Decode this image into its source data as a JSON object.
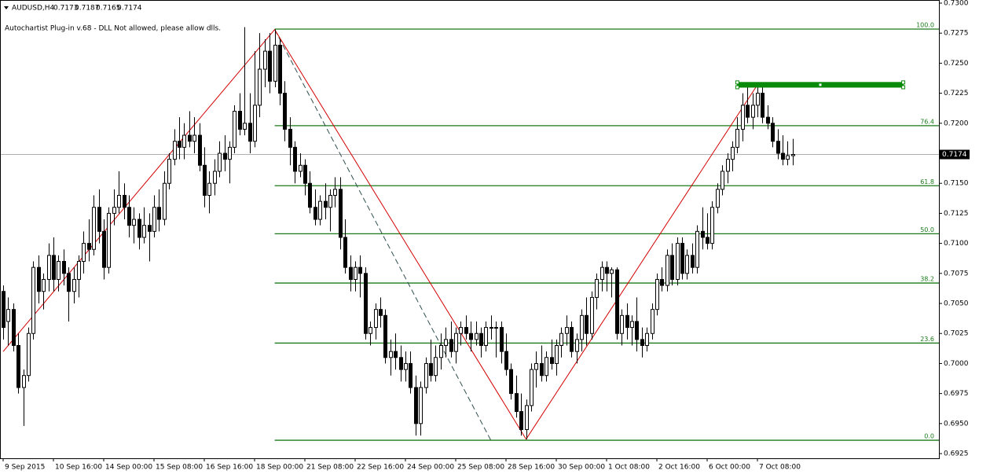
{
  "chart_data": {
    "type": "candlestick",
    "title": "AUDUSD,H4",
    "header_values": [
      0.7173,
      0.7187,
      0.7165,
      0.7174
    ],
    "plugin_message": "Autochartist Plug-in v.68 - DLL Not allowed, please allow dlls.",
    "bull_color": "#ffffff",
    "bear_color": "#000000",
    "grid": false,
    "ylim": [
      0.69211,
      0.73026
    ],
    "yticks": [
      0.6925,
      {
        "value": 0.695,
        "label": "0.6950"
      },
      0.6975,
      {
        "value": 0.7,
        "label": "0.7000"
      },
      0.7025,
      {
        "value": 0.705,
        "label": "0.7050"
      },
      0.7075,
      {
        "value": 0.71,
        "label": "0.7100"
      },
      0.7125,
      {
        "value": 0.715,
        "label": "0.7150"
      },
      0.7175,
      {
        "value": 0.72,
        "label": "0.7200"
      },
      0.7225,
      {
        "value": 0.725,
        "label": "0.7250"
      },
      0.7275,
      {
        "value": 0.73,
        "label": "0.7300"
      }
    ],
    "categories": [
      "9 Sep 2015",
      null,
      null,
      null,
      null,
      null,
      null,
      null,
      null,
      null,
      "10 Sep 16:00",
      null,
      null,
      null,
      null,
      null,
      null,
      null,
      null,
      null,
      "14 Sep 00:00",
      null,
      null,
      null,
      null,
      null,
      null,
      null,
      null,
      null,
      "15 Sep 08:00",
      null,
      null,
      null,
      null,
      null,
      null,
      null,
      null,
      null,
      "16 Sep 16:00",
      null,
      null,
      null,
      null,
      null,
      null,
      null,
      null,
      null,
      "18 Sep 00:00",
      null,
      null,
      null,
      null,
      null,
      null,
      null,
      null,
      null,
      "21 Sep 08:00",
      null,
      null,
      null,
      null,
      null,
      null,
      null,
      null,
      null,
      "22 Sep 16:00",
      null,
      null,
      null,
      null,
      null,
      null,
      null,
      null,
      null,
      "24 Sep 00:00",
      null,
      null,
      null,
      null,
      null,
      null,
      null,
      null,
      null,
      "25 Sep 08:00",
      null,
      null,
      null,
      null,
      null,
      null,
      null,
      null,
      null,
      "28 Sep 16:00",
      null,
      null,
      null,
      null,
      null,
      null,
      null,
      null,
      null,
      "30 Sep 00:00",
      null,
      null,
      null,
      null,
      null,
      null,
      null,
      null,
      null,
      "1 Oct 08:00",
      null,
      null,
      null,
      null,
      null,
      null,
      null,
      null,
      null,
      "2 Oct 16:00",
      null,
      null,
      null,
      null,
      null,
      null,
      null,
      null,
      null,
      "6 Oct 00:00",
      null,
      null,
      null,
      null,
      null,
      null,
      null,
      null,
      null,
      "7 Oct 08:00",
      null,
      null,
      null,
      null,
      null,
      null,
      null
    ],
    "candles": [
      [
        0.706,
        0.7065,
        0.702,
        0.703
      ],
      [
        0.7035,
        0.7055,
        0.7015,
        0.7045
      ],
      [
        0.7045,
        0.705,
        0.701,
        0.7015
      ],
      [
        0.7015,
        0.7025,
        0.6975,
        0.698
      ],
      [
        0.698,
        0.6995,
        0.6948,
        0.699
      ],
      [
        0.699,
        0.703,
        0.6985,
        0.7025
      ],
      [
        0.7025,
        0.7085,
        0.702,
        0.708
      ],
      [
        0.708,
        0.709,
        0.705,
        0.706
      ],
      [
        0.706,
        0.7075,
        0.7045,
        0.707
      ],
      [
        0.707,
        0.71,
        0.706,
        0.709
      ],
      [
        0.709,
        0.7105,
        0.706,
        0.707
      ],
      [
        0.707,
        0.709,
        0.706,
        0.7085
      ],
      [
        0.7085,
        0.7095,
        0.7065,
        0.7075
      ],
      [
        0.7075,
        0.708,
        0.7035,
        0.706
      ],
      [
        0.706,
        0.708,
        0.705,
        0.707
      ],
      [
        0.707,
        0.709,
        0.7055,
        0.7085
      ],
      [
        0.7085,
        0.711,
        0.7075,
        0.71
      ],
      [
        0.71,
        0.712,
        0.7085,
        0.7095
      ],
      [
        0.7095,
        0.714,
        0.709,
        0.713
      ],
      [
        0.713,
        0.7145,
        0.71,
        0.711
      ],
      [
        0.711,
        0.712,
        0.707,
        0.708
      ],
      [
        0.708,
        0.713,
        0.7075,
        0.7125
      ],
      [
        0.7125,
        0.7145,
        0.7115,
        0.713
      ],
      [
        0.713,
        0.716,
        0.7125,
        0.714
      ],
      [
        0.714,
        0.715,
        0.712,
        0.713
      ],
      [
        0.713,
        0.714,
        0.7105,
        0.7115
      ],
      [
        0.7115,
        0.713,
        0.71,
        0.712
      ],
      [
        0.712,
        0.7125,
        0.7095,
        0.7105
      ],
      [
        0.7105,
        0.713,
        0.71,
        0.7115
      ],
      [
        0.7115,
        0.7125,
        0.7085,
        0.711
      ],
      [
        0.711,
        0.714,
        0.7105,
        0.713
      ],
      [
        0.713,
        0.7145,
        0.711,
        0.712
      ],
      [
        0.712,
        0.716,
        0.7115,
        0.715
      ],
      [
        0.715,
        0.7175,
        0.7145,
        0.717
      ],
      [
        0.717,
        0.7195,
        0.7165,
        0.7185
      ],
      [
        0.7185,
        0.7205,
        0.717,
        0.718
      ],
      [
        0.718,
        0.72,
        0.717,
        0.719
      ],
      [
        0.719,
        0.721,
        0.718,
        0.7185
      ],
      [
        0.7185,
        0.7205,
        0.7175,
        0.719
      ],
      [
        0.719,
        0.72,
        0.716,
        0.7165
      ],
      [
        0.7165,
        0.718,
        0.713,
        0.714
      ],
      [
        0.714,
        0.716,
        0.7125,
        0.715
      ],
      [
        0.715,
        0.717,
        0.714,
        0.716
      ],
      [
        0.716,
        0.7185,
        0.7155,
        0.7175
      ],
      [
        0.7175,
        0.719,
        0.716,
        0.717
      ],
      [
        0.717,
        0.7185,
        0.715,
        0.718
      ],
      [
        0.718,
        0.7215,
        0.7175,
        0.721
      ],
      [
        0.721,
        0.7225,
        0.719,
        0.7195
      ],
      [
        0.7195,
        0.728,
        0.719,
        0.72
      ],
      [
        0.72,
        0.7225,
        0.7175,
        0.7185
      ],
      [
        0.7185,
        0.726,
        0.718,
        0.7215
      ],
      [
        0.7215,
        0.7275,
        0.7205,
        0.7245
      ],
      [
        0.7245,
        0.727,
        0.723,
        0.726
      ],
      [
        0.726,
        0.7275,
        0.7225,
        0.7235
      ],
      [
        0.7235,
        0.7278,
        0.723,
        0.7265
      ],
      [
        0.7265,
        0.727,
        0.7215,
        0.7225
      ],
      [
        0.7225,
        0.7235,
        0.7185,
        0.7195
      ],
      [
        0.7195,
        0.7205,
        0.7165,
        0.718
      ],
      [
        0.718,
        0.7185,
        0.715,
        0.716
      ],
      [
        0.716,
        0.7175,
        0.7155,
        0.7165
      ],
      [
        0.7165,
        0.717,
        0.714,
        0.715
      ],
      [
        0.715,
        0.716,
        0.7125,
        0.713
      ],
      [
        0.713,
        0.7145,
        0.7115,
        0.712
      ],
      [
        0.712,
        0.714,
        0.7115,
        0.7135
      ],
      [
        0.7135,
        0.715,
        0.712,
        0.713
      ],
      [
        0.713,
        0.7145,
        0.711,
        0.714
      ],
      [
        0.714,
        0.7155,
        0.713,
        0.7145
      ],
      [
        0.7145,
        0.7155,
        0.7095,
        0.7105
      ],
      [
        0.7105,
        0.712,
        0.7075,
        0.708
      ],
      [
        0.708,
        0.709,
        0.706,
        0.707
      ],
      [
        0.707,
        0.7085,
        0.706,
        0.708
      ],
      [
        0.708,
        0.709,
        0.7055,
        0.7075
      ],
      [
        0.7075,
        0.708,
        0.702,
        0.7025
      ],
      [
        0.7025,
        0.7035,
        0.7015,
        0.703
      ],
      [
        0.703,
        0.705,
        0.702,
        0.7045
      ],
      [
        0.7045,
        0.7055,
        0.703,
        0.704
      ],
      [
        0.704,
        0.7045,
        0.7,
        0.7005
      ],
      [
        0.7005,
        0.702,
        0.699,
        0.701
      ],
      [
        0.701,
        0.7025,
        0.6995,
        0.7005
      ],
      [
        0.7005,
        0.7015,
        0.6985,
        0.6995
      ],
      [
        0.6995,
        0.701,
        0.6985,
        0.7
      ],
      [
        0.7,
        0.701,
        0.6975,
        0.698
      ],
      [
        0.698,
        0.699,
        0.694,
        0.695
      ],
      [
        0.695,
        0.6985,
        0.694,
        0.698
      ],
      [
        0.698,
        0.7005,
        0.6975,
        0.7
      ],
      [
        0.7,
        0.702,
        0.6985,
        0.699
      ],
      [
        0.699,
        0.7015,
        0.6985,
        0.7005
      ],
      [
        0.7005,
        0.7025,
        0.6995,
        0.7015
      ],
      [
        0.7015,
        0.703,
        0.7005,
        0.702
      ],
      [
        0.702,
        0.7035,
        0.7005,
        0.701
      ],
      [
        0.701,
        0.703,
        0.7,
        0.7025
      ],
      [
        0.7025,
        0.7035,
        0.7015,
        0.703
      ],
      [
        0.703,
        0.704,
        0.702,
        0.7025
      ],
      [
        0.7025,
        0.7035,
        0.701,
        0.702
      ],
      [
        0.702,
        0.7035,
        0.7015,
        0.7025
      ],
      [
        0.7025,
        0.703,
        0.7005,
        0.7015
      ],
      [
        0.7015,
        0.7035,
        0.701,
        0.703
      ],
      [
        0.703,
        0.704,
        0.702,
        0.703
      ],
      [
        0.703,
        0.7035,
        0.7005,
        0.703
      ],
      [
        0.703,
        0.7035,
        0.7,
        0.701
      ],
      [
        0.701,
        0.7025,
        0.699,
        0.6995
      ],
      [
        0.6995,
        0.7,
        0.697,
        0.6975
      ],
      [
        0.6975,
        0.699,
        0.6955,
        0.696
      ],
      [
        0.696,
        0.6975,
        0.694,
        0.6945
      ],
      [
        0.6945,
        0.697,
        0.6937,
        0.6965
      ],
      [
        0.6965,
        0.7,
        0.696,
        0.6995
      ],
      [
        0.6995,
        0.701,
        0.698,
        0.7
      ],
      [
        0.7,
        0.7015,
        0.6985,
        0.699
      ],
      [
        0.699,
        0.701,
        0.6985,
        0.7005
      ],
      [
        0.7005,
        0.702,
        0.6995,
        0.7
      ],
      [
        0.7,
        0.702,
        0.699,
        0.7015
      ],
      [
        0.7015,
        0.703,
        0.7005,
        0.7025
      ],
      [
        0.7025,
        0.704,
        0.7015,
        0.703
      ],
      [
        0.703,
        0.7035,
        0.7005,
        0.701
      ],
      [
        0.701,
        0.7025,
        0.7,
        0.702
      ],
      [
        0.702,
        0.7045,
        0.701,
        0.704
      ],
      [
        0.704,
        0.7055,
        0.7015,
        0.7025
      ],
      [
        0.7025,
        0.706,
        0.702,
        0.7055
      ],
      [
        0.7055,
        0.7075,
        0.7045,
        0.707
      ],
      [
        0.707,
        0.7085,
        0.706,
        0.708
      ],
      [
        0.708,
        0.7085,
        0.706,
        0.7075
      ],
      [
        0.7075,
        0.708,
        0.7055,
        0.7078
      ],
      [
        0.7078,
        0.708,
        0.702,
        0.7025
      ],
      [
        0.7025,
        0.7045,
        0.7015,
        0.704
      ],
      [
        0.704,
        0.705,
        0.702,
        0.703
      ],
      [
        0.703,
        0.704,
        0.7015,
        0.7035
      ],
      [
        0.7035,
        0.7055,
        0.701,
        0.702
      ],
      [
        0.702,
        0.703,
        0.7005,
        0.7015
      ],
      [
        0.7015,
        0.703,
        0.701,
        0.7025
      ],
      [
        0.7025,
        0.705,
        0.702,
        0.7045
      ],
      [
        0.7045,
        0.7075,
        0.704,
        0.707
      ],
      [
        0.707,
        0.708,
        0.706,
        0.7065
      ],
      [
        0.7065,
        0.7095,
        0.706,
        0.709
      ],
      [
        0.709,
        0.71,
        0.7065,
        0.707
      ],
      [
        0.707,
        0.7105,
        0.7065,
        0.71
      ],
      [
        0.71,
        0.7105,
        0.707,
        0.7075
      ],
      [
        0.7075,
        0.7095,
        0.707,
        0.709
      ],
      [
        0.709,
        0.71,
        0.7075,
        0.708
      ],
      [
        0.708,
        0.7115,
        0.7075,
        0.711
      ],
      [
        0.711,
        0.713,
        0.7095,
        0.7105
      ],
      [
        0.7105,
        0.7125,
        0.7095,
        0.71
      ],
      [
        0.71,
        0.7135,
        0.7095,
        0.713
      ],
      [
        0.713,
        0.715,
        0.7125,
        0.7145
      ],
      [
        0.7145,
        0.7165,
        0.714,
        0.716
      ],
      [
        0.716,
        0.7175,
        0.715,
        0.717
      ],
      [
        0.717,
        0.7185,
        0.716,
        0.718
      ],
      [
        0.718,
        0.7205,
        0.7175,
        0.7195
      ],
      [
        0.7195,
        0.7225,
        0.7185,
        0.7215
      ],
      [
        0.7215,
        0.7232,
        0.72,
        0.7205
      ],
      [
        0.7205,
        0.7225,
        0.7195,
        0.7215
      ],
      [
        0.7215,
        0.7232,
        0.7205,
        0.7225
      ],
      [
        0.7225,
        0.723,
        0.72,
        0.7205
      ],
      [
        0.7205,
        0.7215,
        0.7195,
        0.72
      ],
      [
        0.72,
        0.7205,
        0.718,
        0.7185
      ],
      [
        0.7185,
        0.7195,
        0.717,
        0.7175
      ],
      [
        0.7175,
        0.719,
        0.7165,
        0.717
      ],
      [
        0.717,
        0.7185,
        0.7165,
        0.7173
      ],
      [
        0.7173,
        0.7187,
        0.7165,
        0.7174
      ]
    ],
    "last_price": 0.7174,
    "zigzag": {
      "color": "#d40000",
      "points": [
        {
          "index": 0,
          "price": 0.701
        },
        {
          "index": 54,
          "price": 0.7278
        },
        {
          "index": 104,
          "price": 0.6937
        },
        {
          "index": 150,
          "price": 0.7232
        }
      ]
    },
    "trend_line": {
      "color": "#2f4f4f",
      "points": [
        {
          "index": 54,
          "price": 0.7278
        },
        {
          "index": 97,
          "price": 0.6936
        }
      ]
    },
    "fibonacci": {
      "color": "#1a7a1a",
      "from_index": 54,
      "levels": [
        {
          "label": "100.0",
          "price": 0.72784
        },
        {
          "label": "76.4",
          "price": 0.7198
        },
        {
          "label": "61.8",
          "price": 0.7148
        },
        {
          "label": "50.0",
          "price": 0.7108
        },
        {
          "label": "38.2",
          "price": 0.7067
        },
        {
          "label": "23.6",
          "price": 0.7017
        },
        {
          "label": "0.0",
          "price": 0.69361
        }
      ]
    },
    "zone": {
      "color": "#0a8a0a",
      "from_index": 146,
      "to_index": 179,
      "top": 0.7234,
      "bottom": 0.723
    }
  }
}
